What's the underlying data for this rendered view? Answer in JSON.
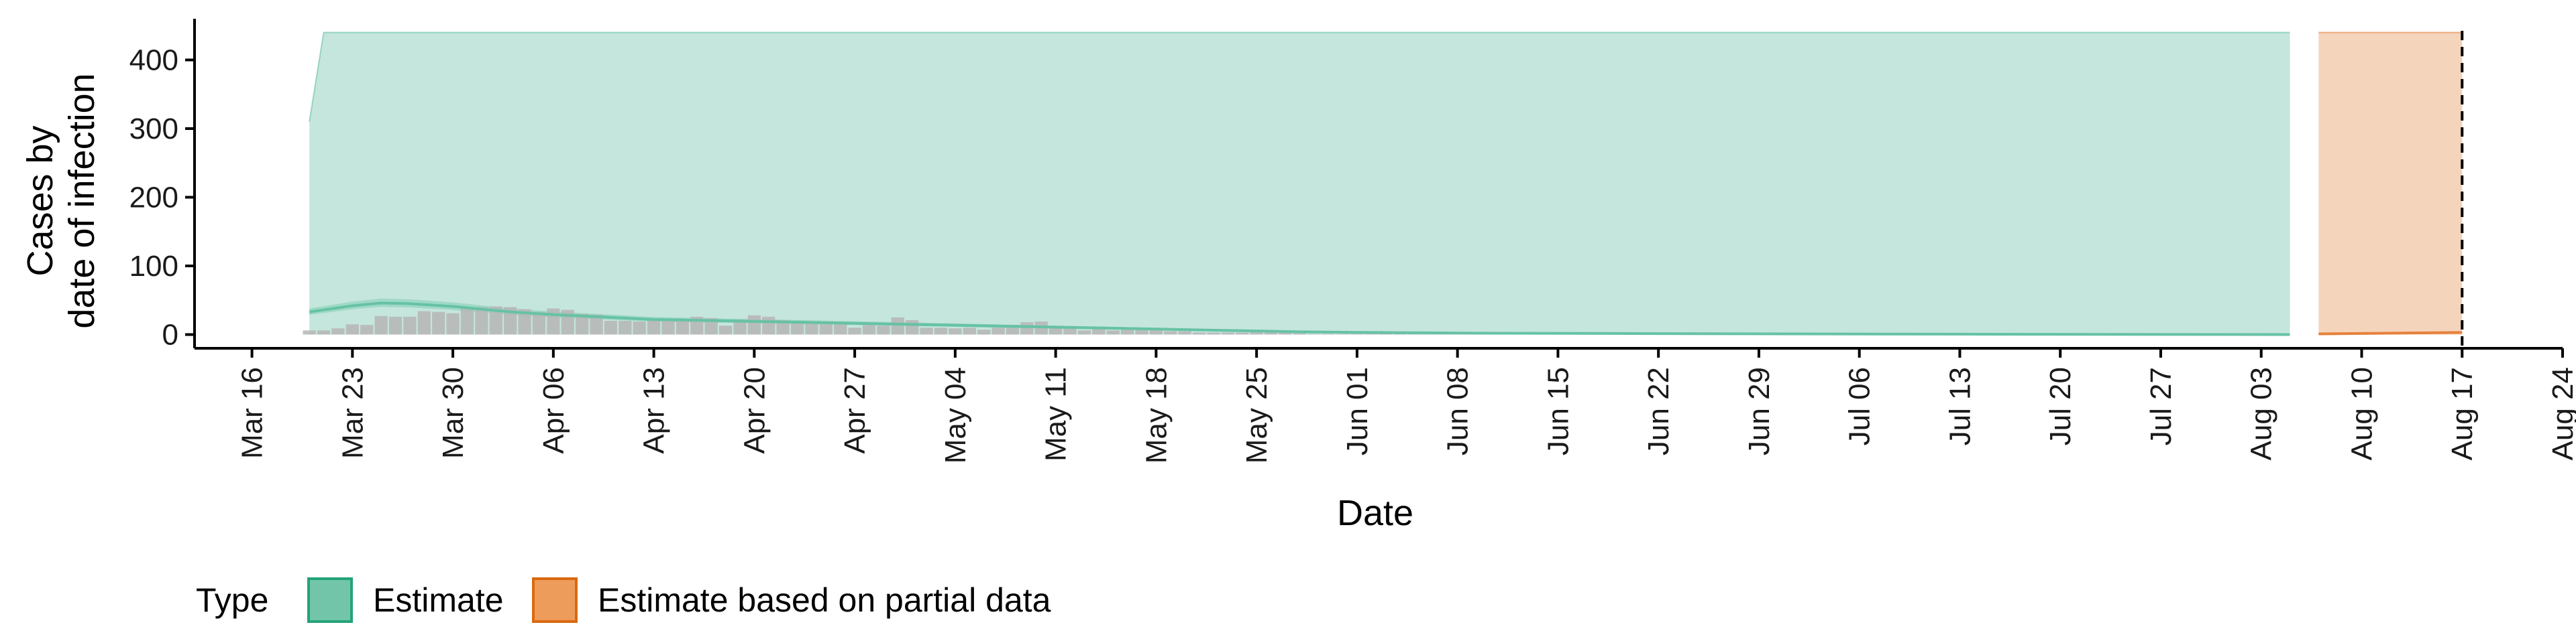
{
  "chart_data": {
    "type": "area",
    "xlabel": "Date",
    "ylabel_lines": [
      "Cases by",
      "date of infection"
    ],
    "x_tick_labels": [
      "Mar 16",
      "Mar 23",
      "Mar 30",
      "Apr 06",
      "Apr 13",
      "Apr 20",
      "Apr 27",
      "May 04",
      "May 11",
      "May 18",
      "May 25",
      "Jun 01",
      "Jun 08",
      "Jun 15",
      "Jun 22",
      "Jun 29",
      "Jul 06",
      "Jul 13",
      "Jul 20",
      "Jul 27",
      "Aug 03",
      "Aug 10",
      "Aug 17",
      "Aug 24"
    ],
    "x_tick_dates": [
      "2020-03-16",
      "2020-03-23",
      "2020-03-30",
      "2020-04-06",
      "2020-04-13",
      "2020-04-20",
      "2020-04-27",
      "2020-05-04",
      "2020-05-11",
      "2020-05-18",
      "2020-05-25",
      "2020-06-01",
      "2020-06-08",
      "2020-06-15",
      "2020-06-22",
      "2020-06-29",
      "2020-07-06",
      "2020-07-13",
      "2020-07-20",
      "2020-07-27",
      "2020-08-03",
      "2020-08-10",
      "2020-08-17",
      "2020-08-24"
    ],
    "xlim": [
      "2020-03-12",
      "2020-08-24"
    ],
    "y_ticks": [
      0,
      100,
      200,
      300,
      400
    ],
    "ylim": [
      -20,
      460
    ],
    "reported_cases": {
      "dates": [
        "2020-03-20",
        "2020-03-21",
        "2020-03-22",
        "2020-03-23",
        "2020-03-24",
        "2020-03-25",
        "2020-03-26",
        "2020-03-27",
        "2020-03-28",
        "2020-03-29",
        "2020-03-30",
        "2020-03-31",
        "2020-04-01",
        "2020-04-02",
        "2020-04-03",
        "2020-04-04",
        "2020-04-05",
        "2020-04-06",
        "2020-04-07",
        "2020-04-08",
        "2020-04-09",
        "2020-04-10",
        "2020-04-11",
        "2020-04-12",
        "2020-04-13",
        "2020-04-14",
        "2020-04-15",
        "2020-04-16",
        "2020-04-17",
        "2020-04-18",
        "2020-04-19",
        "2020-04-20",
        "2020-04-21",
        "2020-04-22",
        "2020-04-23",
        "2020-04-24",
        "2020-04-25",
        "2020-04-26",
        "2020-04-27",
        "2020-04-28",
        "2020-04-29",
        "2020-04-30",
        "2020-05-01",
        "2020-05-02",
        "2020-05-03",
        "2020-05-04",
        "2020-05-05",
        "2020-05-06",
        "2020-05-07",
        "2020-05-08",
        "2020-05-09",
        "2020-05-10",
        "2020-05-11",
        "2020-05-12",
        "2020-05-13",
        "2020-05-14",
        "2020-05-15",
        "2020-05-16",
        "2020-05-17",
        "2020-05-18",
        "2020-05-19",
        "2020-05-20",
        "2020-05-21",
        "2020-05-22",
        "2020-05-23",
        "2020-05-24",
        "2020-05-25",
        "2020-05-26",
        "2020-05-27",
        "2020-05-28",
        "2020-05-29",
        "2020-05-30",
        "2020-05-31",
        "2020-06-01",
        "2020-06-02",
        "2020-06-03",
        "2020-06-04",
        "2020-06-05",
        "2020-06-06",
        "2020-06-07",
        "2020-06-08",
        "2020-06-09",
        "2020-06-10",
        "2020-06-11",
        "2020-06-12",
        "2020-06-13",
        "2020-06-14",
        "2020-06-15"
      ],
      "values": [
        6,
        6,
        9,
        15,
        14,
        27,
        26,
        26,
        34,
        33,
        31,
        38,
        40,
        41,
        40,
        37,
        33,
        38,
        36,
        30,
        29,
        20,
        20,
        19,
        22,
        20,
        20,
        26,
        24,
        13,
        22,
        28,
        26,
        21,
        20,
        19,
        18,
        18,
        10,
        14,
        13,
        25,
        21,
        10,
        10,
        9,
        10,
        7,
        10,
        14,
        18,
        19,
        11,
        12,
        6,
        8,
        6,
        7,
        9,
        8,
        5,
        5,
        3,
        3,
        3,
        3,
        7,
        6,
        3,
        2,
        1,
        1,
        0,
        1,
        1,
        1,
        1,
        0,
        0,
        2,
        0,
        1,
        4,
        1,
        0,
        0,
        1,
        0
      ]
    },
    "series": [
      {
        "name": "Estimate",
        "color": "#66c2a5",
        "fill": "#c5e6dd",
        "dates": [
          "2020-03-20",
          "2020-03-21",
          "2020-08-05"
        ],
        "upper": [
          310,
          440,
          440
        ],
        "lower": [
          0,
          0,
          0
        ],
        "median_dates": [
          "2020-03-20",
          "2020-03-23",
          "2020-03-25",
          "2020-03-27",
          "2020-03-30",
          "2020-04-03",
          "2020-04-06",
          "2020-04-10",
          "2020-04-13",
          "2020-04-18",
          "2020-04-23",
          "2020-04-28",
          "2020-05-03",
          "2020-05-08",
          "2020-05-13",
          "2020-05-18",
          "2020-05-23",
          "2020-05-28",
          "2020-06-02",
          "2020-06-10",
          "2020-06-20",
          "2020-07-01",
          "2020-07-15",
          "2020-08-05"
        ],
        "median": [
          33,
          42,
          46,
          45,
          41,
          33,
          29,
          25,
          22,
          20,
          18,
          16,
          14,
          12,
          10,
          8,
          6,
          4,
          3,
          2,
          1.5,
          1,
          0.5,
          0
        ]
      },
      {
        "name": "Estimate based on partial data",
        "color": "#e6813a",
        "fill": "#f5d4bc",
        "dates": [
          "2020-08-07",
          "2020-08-17"
        ],
        "upper": [
          440,
          440
        ],
        "lower": [
          0,
          0
        ],
        "median_dates": [
          "2020-08-07",
          "2020-08-17"
        ],
        "median": [
          1,
          3
        ]
      }
    ],
    "vline_date": "2020-08-17",
    "legend": {
      "title": "Type",
      "placement": "bottom-left",
      "items": [
        {
          "label": "Estimate",
          "fill": "#73c5a9",
          "border": "#23a37a"
        },
        {
          "label": "Estimate based on partial data",
          "fill": "#ee9c5c",
          "border": "#d9690f"
        }
      ]
    },
    "colors": {
      "axis": "#000000",
      "bars": "#b5b5b5",
      "vline": "#000000"
    }
  }
}
